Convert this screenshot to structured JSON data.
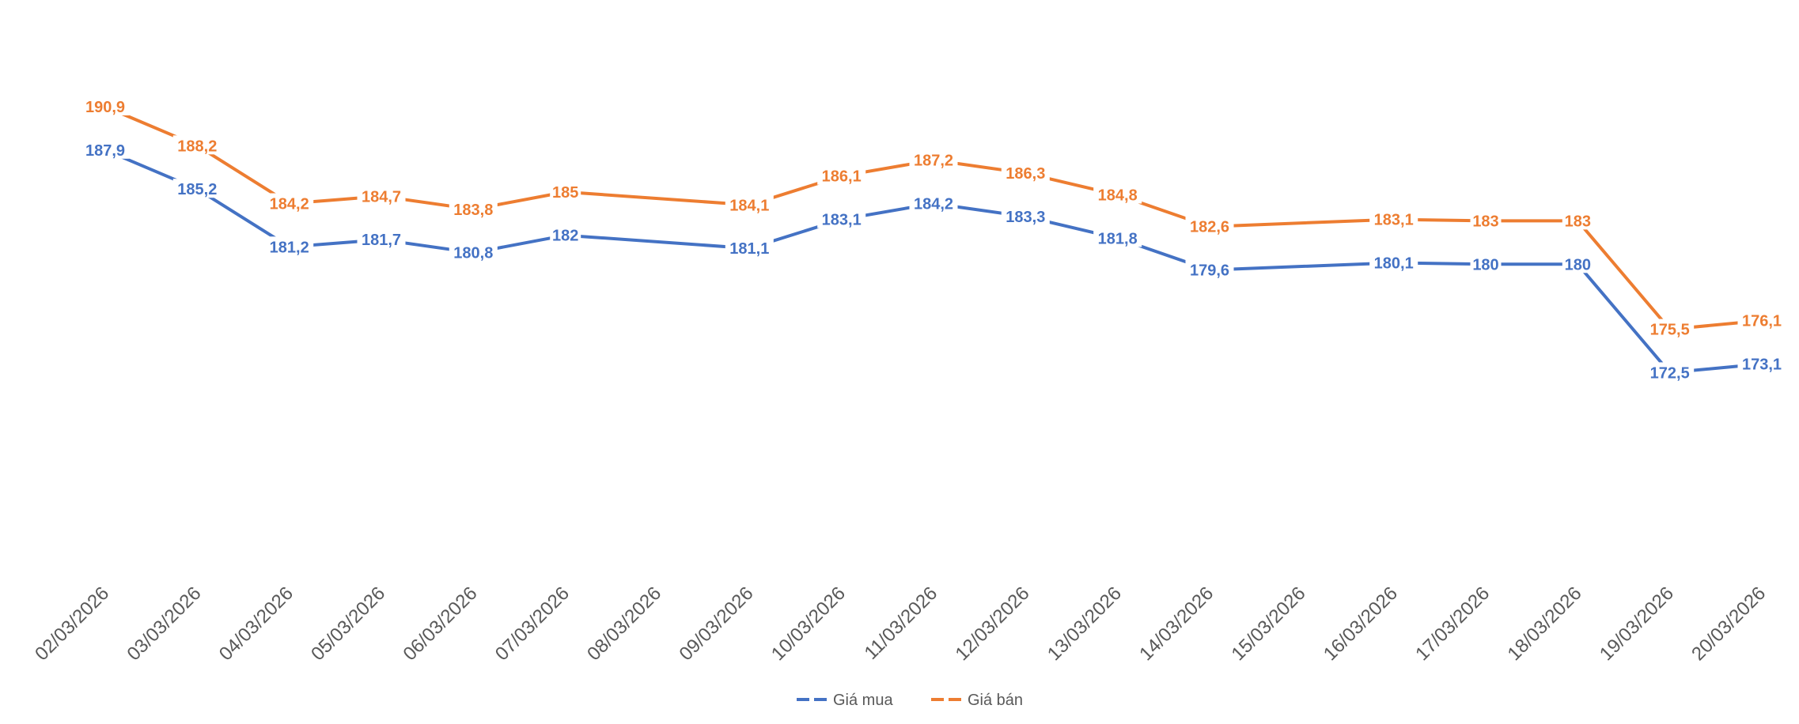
{
  "chart_data": {
    "type": "line",
    "title": "",
    "xlabel": "",
    "ylabel": "",
    "ylim": [
      160,
      195
    ],
    "grid": false,
    "legend_position": "bottom",
    "categories": [
      "02/03/2026",
      "03/03/2026",
      "04/03/2026",
      "05/03/2026",
      "06/03/2026",
      "07/03/2026",
      "08/03/2026",
      "09/03/2026",
      "10/03/2026",
      "11/03/2026",
      "12/03/2026",
      "13/03/2026",
      "14/03/2026",
      "15/03/2026",
      "16/03/2026",
      "17/03/2026",
      "18/03/2026",
      "19/03/2026",
      "20/03/2026"
    ],
    "series": [
      {
        "name": "Giá mua",
        "color": "#4472C4",
        "values": [
          187.9,
          185.2,
          181.2,
          181.7,
          180.8,
          182,
          null,
          181.1,
          183.1,
          184.2,
          183.3,
          181.8,
          179.6,
          null,
          180.1,
          180,
          180,
          172.5,
          173.1
        ],
        "labels": [
          "187,9",
          "185,2",
          "181,2",
          "181,7",
          "180,8",
          "182",
          "",
          "181,1",
          "183,1",
          "184,2",
          "183,3",
          "181,8",
          "179,6",
          "",
          "180,1",
          "180",
          "180",
          "172,5",
          "173,1"
        ]
      },
      {
        "name": "Giá bán",
        "color": "#ED7D31",
        "values": [
          190.9,
          188.2,
          184.2,
          184.7,
          183.8,
          185,
          null,
          184.1,
          186.1,
          187.2,
          186.3,
          184.8,
          182.6,
          null,
          183.1,
          183,
          183,
          175.5,
          176.1
        ],
        "labels": [
          "190,9",
          "188,2",
          "184,2",
          "184,7",
          "183,8",
          "185",
          "",
          "184,1",
          "186,1",
          "187,2",
          "186,3",
          "184,8",
          "182,6",
          "",
          "183,1",
          "183",
          "183",
          "175,5",
          "176,1"
        ]
      }
    ]
  }
}
